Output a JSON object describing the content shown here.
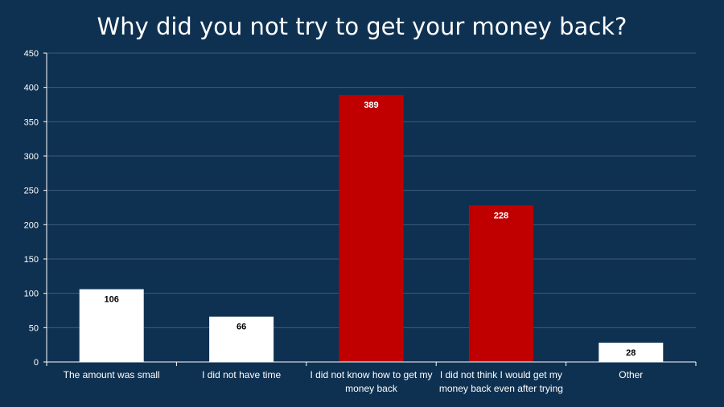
{
  "chart_data": {
    "type": "bar",
    "title": "Why did you not try to get your money back?",
    "categories": [
      [
        "The amount was small"
      ],
      [
        "I did not have time"
      ],
      [
        "I did not know how to get my",
        "money back"
      ],
      [
        "I did not think I would get my",
        "money back even after trying"
      ],
      [
        "Other"
      ]
    ],
    "values": [
      106,
      66,
      389,
      228,
      28
    ],
    "bar_colors": [
      "#ffffff",
      "#ffffff",
      "#c00000",
      "#c00000",
      "#ffffff"
    ],
    "label_colors": [
      "#000000",
      "#000000",
      "#ffffff",
      "#ffffff",
      "#000000"
    ],
    "ylim": [
      0,
      450
    ],
    "yticks": [
      0,
      50,
      100,
      150,
      200,
      250,
      300,
      350,
      400,
      450
    ],
    "grid": true,
    "colors": {
      "background": "#0f3151",
      "gridline": "#3e5c78",
      "axis": "#ffffff"
    }
  }
}
